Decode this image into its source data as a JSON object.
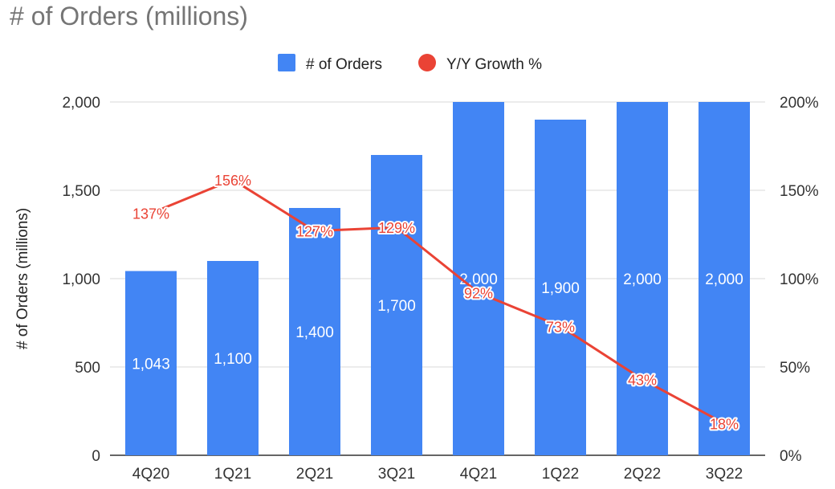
{
  "chart_data": {
    "type": "bar",
    "title": "# of Orders (millions)",
    "ylabel": "# of Orders (millions)",
    "xlabel": "",
    "categories": [
      "4Q20",
      "1Q21",
      "2Q21",
      "3Q21",
      "4Q21",
      "1Q22",
      "2Q22",
      "3Q22"
    ],
    "series": [
      {
        "name": "# of Orders",
        "type": "bar",
        "axis": "left",
        "color": "#4285f4",
        "values": [
          1043,
          1100,
          1400,
          1700,
          2000,
          1900,
          2000,
          2000
        ],
        "labels": [
          "1,043",
          "1,100",
          "1,400",
          "1,700",
          "2,000",
          "1,900",
          "2,000",
          "2,000"
        ]
      },
      {
        "name": "Y/Y Growth %",
        "type": "line",
        "axis": "right",
        "color": "#ea4335",
        "values": [
          137,
          156,
          127,
          129,
          92,
          73,
          43,
          18
        ],
        "labels": [
          "137%",
          "156%",
          "127%",
          "129%",
          "92%",
          "73%",
          "43%",
          "18%"
        ]
      }
    ],
    "ylim": [
      0,
      2000
    ],
    "y_ticks": [
      "0",
      "500",
      "1,000",
      "1,500",
      "2,000"
    ],
    "y2lim": [
      0,
      200
    ],
    "y2_ticks": [
      "0%",
      "50%",
      "100%",
      "150%",
      "200%"
    ],
    "grid": true,
    "legend_position": "top"
  }
}
